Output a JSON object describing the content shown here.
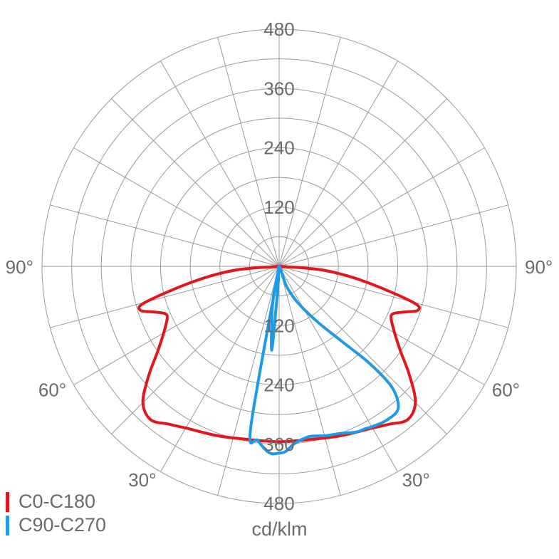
{
  "chart_data": {
    "type": "polar",
    "unit": "cd/klm",
    "radial_max": 480,
    "radial_ticks": [
      120,
      240,
      360,
      480
    ],
    "angle_labels": [
      "90°",
      "90°",
      "60°",
      "60°",
      "30°",
      "30°"
    ],
    "legend_placement": "bottom-left",
    "series": [
      {
        "name": "C0-C180",
        "color": "#e3161b",
        "symmetric": true,
        "points": [
          [
            0,
            355
          ],
          [
            10,
            356
          ],
          [
            20,
            365
          ],
          [
            30,
            378
          ],
          [
            35,
            390
          ],
          [
            40,
            405
          ],
          [
            45,
            390
          ],
          [
            50,
            345
          ],
          [
            55,
            300
          ],
          [
            60,
            270
          ],
          [
            65,
            250
          ],
          [
            67.5,
            250
          ],
          [
            70,
            270
          ],
          [
            72.5,
            295
          ],
          [
            75,
            280
          ],
          [
            80,
            175
          ],
          [
            85,
            90
          ],
          [
            90,
            0
          ]
        ]
      },
      {
        "name": "C90-C270",
        "color": "#1e9be6",
        "symmetric": false,
        "points": [
          [
            -20,
            0
          ],
          [
            -10,
            330
          ],
          [
            -7,
            355
          ],
          [
            -3,
            378
          ],
          [
            0,
            378
          ],
          [
            2,
            375
          ],
          [
            5,
            360
          ],
          [
            10,
            350
          ],
          [
            15,
            355
          ],
          [
            20,
            360
          ],
          [
            25,
            370
          ],
          [
            28,
            372
          ],
          [
            30,
            375
          ],
          [
            35,
            380
          ],
          [
            40,
            375
          ],
          [
            43,
            335
          ],
          [
            43,
            270
          ],
          [
            40,
            200
          ],
          [
            35,
            140
          ],
          [
            30,
            100
          ],
          [
            25,
            70
          ],
          [
            20,
            40
          ],
          [
            0,
            0
          ],
          [
            -3,
            35
          ],
          [
            -5,
            170
          ],
          [
            -10,
            75
          ],
          [
            -20,
            0
          ]
        ]
      }
    ]
  }
}
